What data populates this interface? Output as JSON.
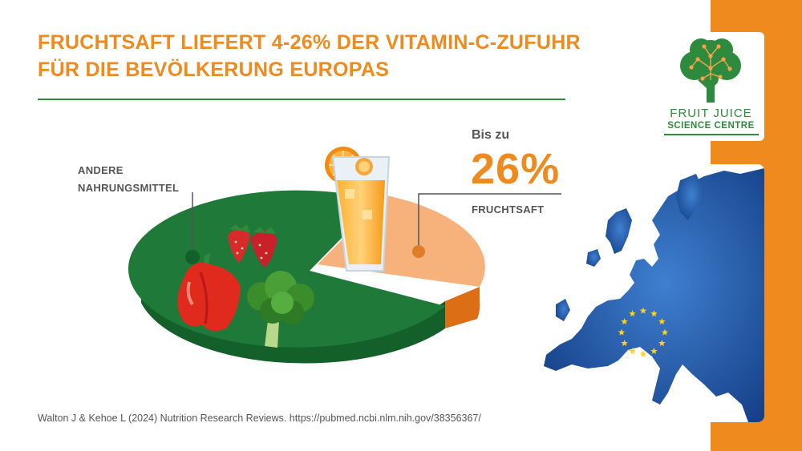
{
  "title": {
    "line1": "FRUCHTSAFT LIEFERT 4-26% DER VITAMIN-C-ZUFUHR",
    "line2": "FÜR DIE BEVÖLKERUNG EUROPAS"
  },
  "labels": {
    "other_line1": "ANDERE",
    "other_line2": "NAHRUNGSMITTEL",
    "bis_zu": "Bis zu",
    "percent": "26%",
    "juice": "FRUCHTSAFT"
  },
  "logo": {
    "line1": "FRUIT JUICE",
    "line2": "SCIENCE CENTRE"
  },
  "source": "Walton J & Kehoe L (2024) Nutrition Research Reviews. https://pubmed.ncbi.nlm.nih.gov/38356367/",
  "chart_data": {
    "type": "pie",
    "categories": [
      "ANDERE NAHRUNGSMITTEL",
      "FRUCHTSAFT"
    ],
    "values": [
      74,
      26
    ],
    "colors": [
      "#1f7a3a",
      "#f6b27a"
    ]
  },
  "colors": {
    "accent": "#ef8a1f",
    "green": "#2e8a3c",
    "map_blue": "#1d4fa0",
    "eu_star": "#ffd21f"
  },
  "icons": [
    "tree-logo-icon",
    "orange-juice-glass-icon",
    "strawberry-icon",
    "red-pepper-icon",
    "broccoli-icon",
    "europe-map-icon",
    "eu-stars-icon"
  ]
}
